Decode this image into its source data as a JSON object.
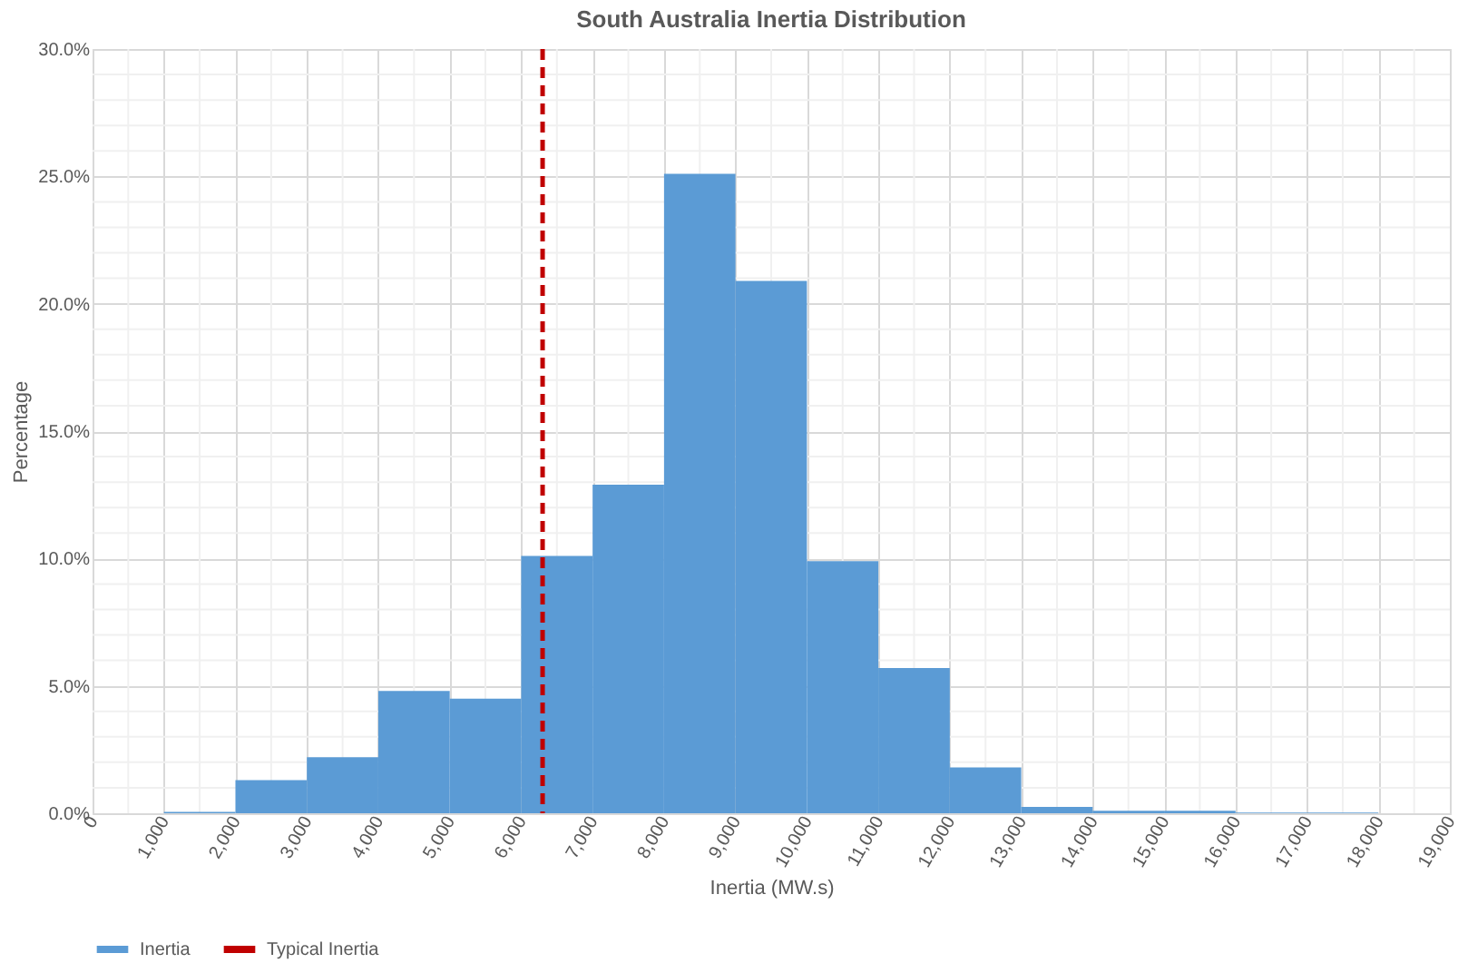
{
  "chart_data": {
    "type": "histogram",
    "title": "South Australia Inertia Distribution",
    "xlabel": "Inertia (MW.s)",
    "ylabel": "Percentage",
    "bins": [
      0,
      1000,
      2000,
      3000,
      4000,
      5000,
      6000,
      7000,
      8000,
      9000,
      10000,
      11000,
      12000,
      13000,
      14000,
      15000,
      16000,
      17000,
      18000,
      19000
    ],
    "series": [
      {
        "name": "Inertia",
        "color": "#5b9bd5",
        "values": [
          0,
          0.05,
          1.3,
          2.2,
          4.8,
          4.5,
          10.1,
          12.9,
          25.1,
          20.9,
          9.9,
          5.7,
          1.8,
          0.25,
          0.1,
          0.1,
          0.03,
          0.03,
          0
        ]
      }
    ],
    "xlim": [
      0,
      19000
    ],
    "xticks": [
      0,
      {
        "value": 1000,
        "label": "1,000"
      },
      {
        "value": 2000,
        "label": "2,000"
      },
      {
        "value": 3000,
        "label": "3,000"
      },
      {
        "value": 4000,
        "label": "4,000"
      },
      {
        "value": 5000,
        "label": "5,000"
      },
      {
        "value": 6000,
        "label": "6,000"
      },
      {
        "value": 7000,
        "label": "7,000"
      },
      {
        "value": 8000,
        "label": "8,000"
      },
      {
        "value": 9000,
        "label": "9,000"
      },
      {
        "value": 10000,
        "label": "10,000"
      },
      {
        "value": 11000,
        "label": "11,000"
      },
      {
        "value": 12000,
        "label": "12,000"
      },
      {
        "value": 13000,
        "label": "13,000"
      },
      {
        "value": 14000,
        "label": "14,000"
      },
      {
        "value": 15000,
        "label": "15,000"
      },
      {
        "value": 16000,
        "label": "16,000"
      },
      {
        "value": 17000,
        "label": "17,000"
      },
      {
        "value": 18000,
        "label": "18,000"
      },
      {
        "value": 19000,
        "label": "19,000"
      }
    ],
    "ylim": [
      0,
      30
    ],
    "yticks": [
      {
        "value": 0,
        "label": "0.0%"
      },
      {
        "value": 5,
        "label": "5.0%"
      },
      {
        "value": 10,
        "label": "10.0%"
      },
      {
        "value": 15,
        "label": "15.0%"
      },
      {
        "value": 20,
        "label": "20.0%"
      },
      {
        "value": 25,
        "label": "25.0%"
      },
      {
        "value": 30,
        "label": "30.0%"
      }
    ],
    "ref_lines": [
      {
        "axis": "x",
        "value": 6300,
        "label": "Typical Inertia",
        "color": "#c00000",
        "line_style": "dashed"
      }
    ],
    "grid": true,
    "legend": "bottom"
  }
}
